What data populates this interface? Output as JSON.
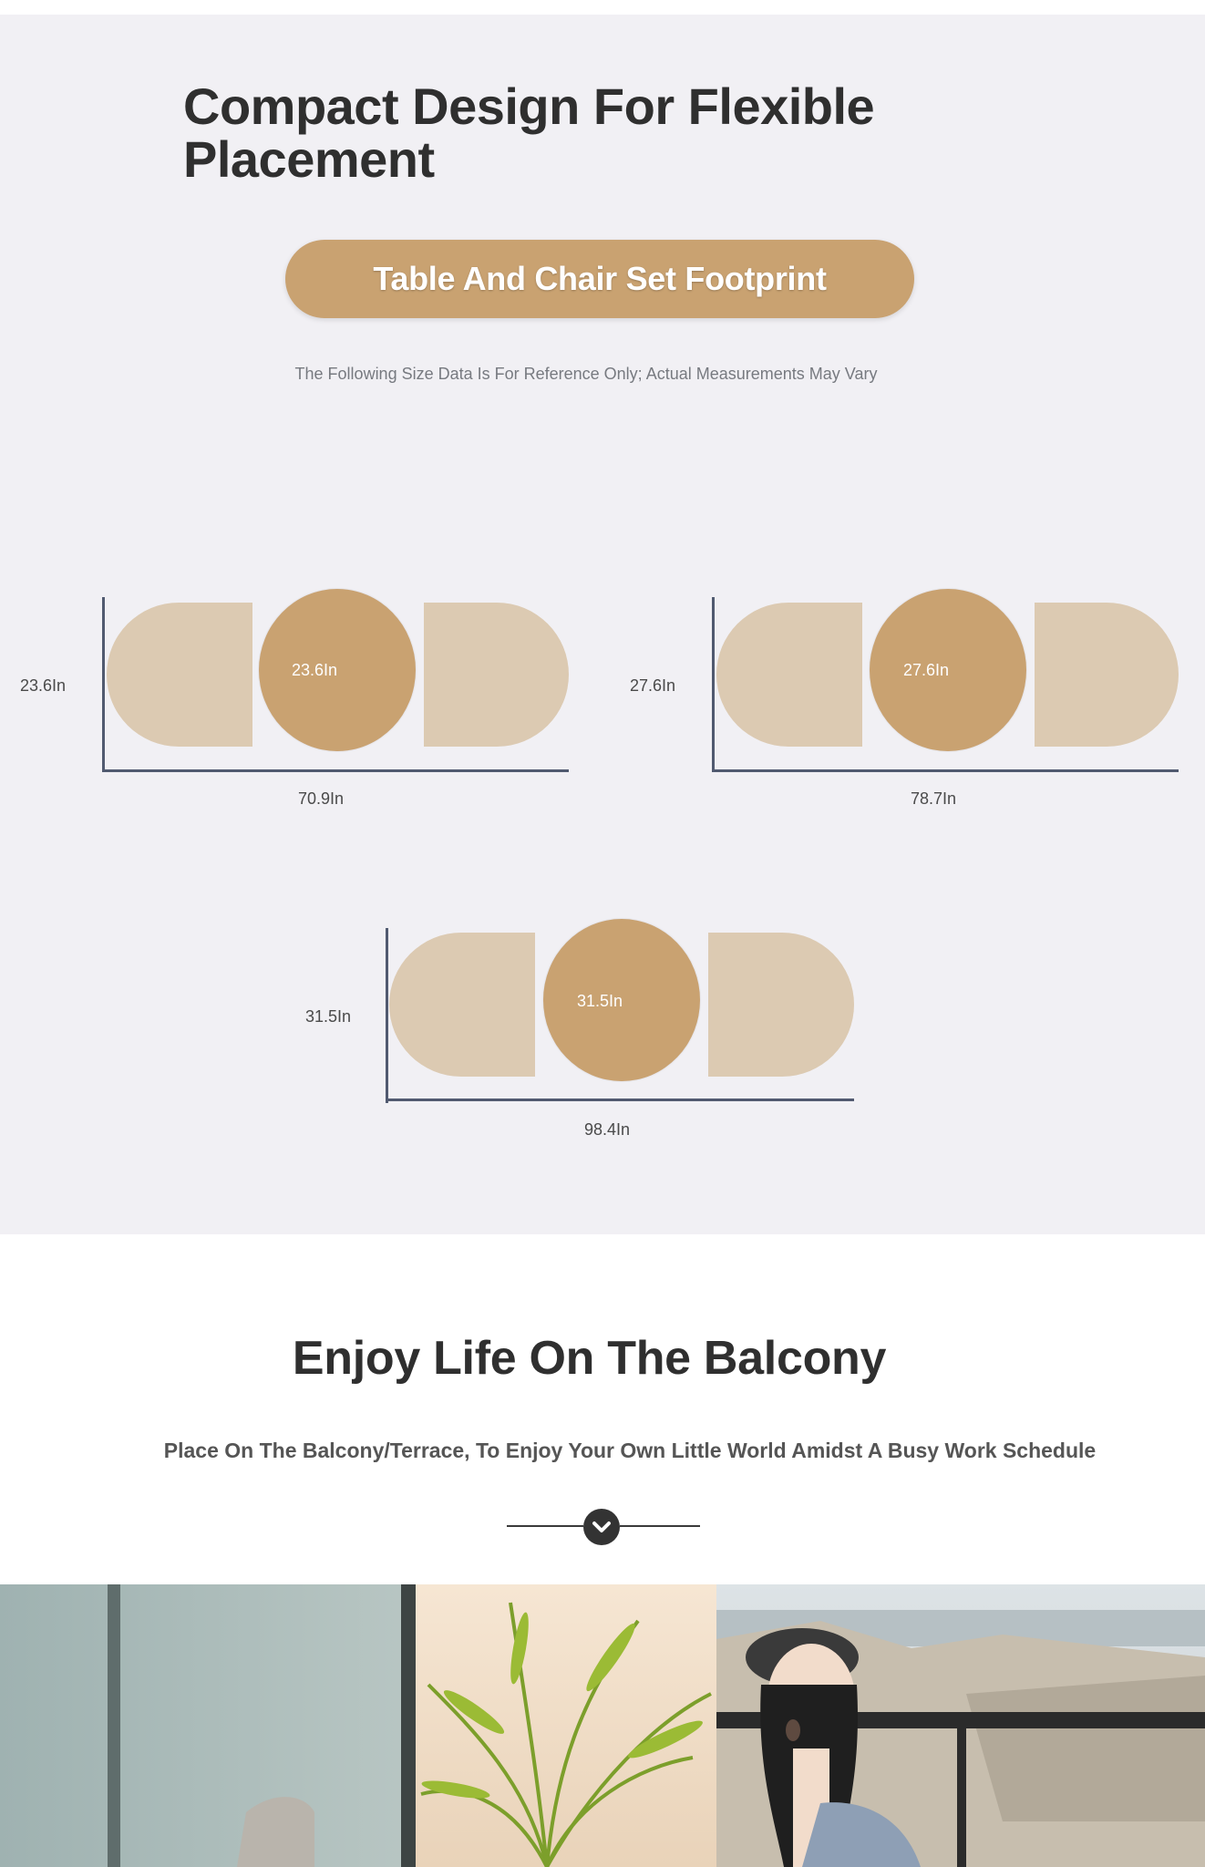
{
  "hero": {
    "title": "Compact Design For Flexible Placement",
    "pill_label": "Table And Chair Set Footprint",
    "disclaimer": "The Following Size Data Is For Reference Only; Actual Measurements May Vary"
  },
  "footprints": [
    {
      "table_diameter": "23.6In",
      "depth": "23.6In",
      "total_length": "70.9In"
    },
    {
      "table_diameter": "27.6In",
      "depth": "27.6In",
      "total_length": "78.7In"
    },
    {
      "table_diameter": "31.5In",
      "depth": "31.5In",
      "total_length": "98.4In"
    }
  ],
  "balcony": {
    "title": "Enjoy Life On The Balcony",
    "subtitle": "Place On The Balcony/Terrace, To Enjoy Your Own Little World Amidst A Busy Work Schedule",
    "scroll_icon": "chevron-down-icon"
  },
  "photo": {
    "icon": "balcony-lifestyle-photo"
  },
  "colors": {
    "accent": "#c9a271",
    "chair": "#dccab2",
    "section_bg": "#f1f0f4",
    "axis": "#515a70"
  }
}
